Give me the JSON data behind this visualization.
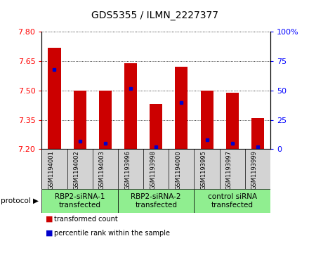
{
  "title": "GDS5355 / ILMN_2227377",
  "samples": [
    "GSM1194001",
    "GSM1194002",
    "GSM1194003",
    "GSM1193996",
    "GSM1193998",
    "GSM1194000",
    "GSM1193995",
    "GSM1193997",
    "GSM1193999"
  ],
  "transformed_counts": [
    7.72,
    7.5,
    7.5,
    7.64,
    7.43,
    7.62,
    7.5,
    7.49,
    7.36
  ],
  "percentile_ranks": [
    68,
    7,
    5,
    52,
    2,
    40,
    8,
    5,
    2
  ],
  "ylim_left": [
    7.2,
    7.8
  ],
  "ylim_right": [
    0,
    100
  ],
  "yticks_left": [
    7.2,
    7.35,
    7.5,
    7.65,
    7.8
  ],
  "yticks_right": [
    0,
    25,
    50,
    75,
    100
  ],
  "bar_color": "#cc0000",
  "marker_color": "#0000cc",
  "bar_width": 0.5,
  "group_ranges": [
    [
      0,
      2
    ],
    [
      3,
      5
    ],
    [
      6,
      8
    ]
  ],
  "group_labels": [
    "RBP2-siRNA-1\ntransfected",
    "RBP2-siRNA-2\ntransfected",
    "control siRNA\ntransfected"
  ],
  "group_color": "#90EE90",
  "cell_color": "#d3d3d3",
  "protocol_label": "protocol",
  "legend_items": [
    {
      "color": "#cc0000",
      "label": "transformed count"
    },
    {
      "color": "#0000cc",
      "label": "percentile rank within the sample"
    }
  ],
  "plot_bg": "#ffffff",
  "title_fontsize": 10,
  "tick_fontsize": 8,
  "sample_fontsize": 6,
  "group_fontsize": 7.5,
  "legend_fontsize": 7
}
